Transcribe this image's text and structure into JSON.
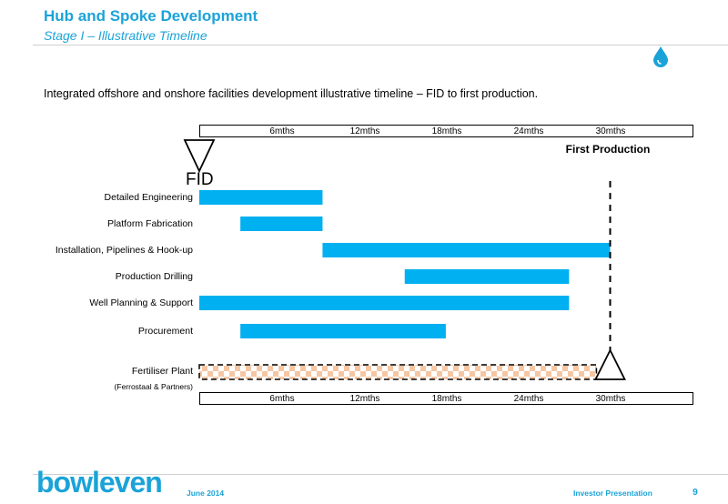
{
  "header": {
    "title": "Hub and Spoke Development",
    "subtitle": "Stage I – Illustrative Timeline"
  },
  "intro": "Integrated offshore and onshore facilities development illustrative timeline – FID to first production.",
  "colors": {
    "accent": "#1ba3d8",
    "bar": "#00b0f0",
    "fertiliser_a": "#f6c6a3",
    "fertiliser_b": "#ffffff"
  },
  "chart_data": {
    "type": "gantt",
    "x_unit": "months from FID",
    "xlim": [
      0,
      36
    ],
    "axis_ticks": [
      "6mths",
      "12mths",
      "18mths",
      "24mths",
      "30mths"
    ],
    "tick_values": [
      6,
      12,
      18,
      24,
      30
    ],
    "milestones": [
      {
        "label": "FID",
        "x": 0
      },
      {
        "label": "First Production",
        "x": 30
      }
    ],
    "tasks": [
      {
        "name": "Detailed Engineering",
        "start": 0,
        "end": 9
      },
      {
        "name": "Platform Fabrication",
        "start": 3,
        "end": 9
      },
      {
        "name": "Installation, Pipelines & Hook-up",
        "start": 9,
        "end": 30
      },
      {
        "name": "Production Drilling",
        "start": 15,
        "end": 27
      },
      {
        "name": "Well Planning & Support",
        "start": 0,
        "end": 27
      },
      {
        "name": "Procurement",
        "start": 3,
        "end": 18
      },
      {
        "name": "Fertiliser Plant",
        "sublabel": "(Ferrostaal & Partners)",
        "start": 0,
        "end": 29,
        "style": "hatched"
      }
    ]
  },
  "footer": {
    "logo": "bowleven",
    "date": "June 2014",
    "title": "Investor Presentation",
    "page": "9"
  }
}
